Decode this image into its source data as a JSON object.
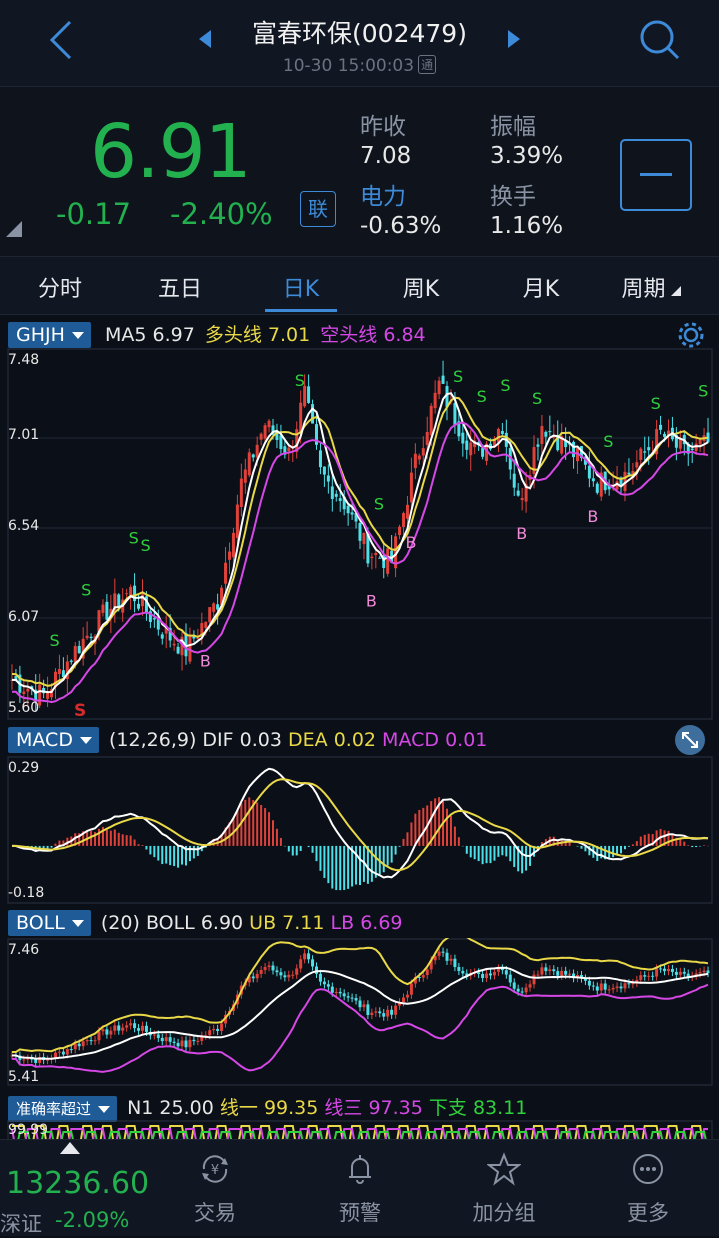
{
  "header": {
    "title": "富春环保(002479)",
    "datetime": "10-30 15:00:03",
    "tong": "通"
  },
  "quote": {
    "price": "6.91",
    "change": "-0.17",
    "change_pct": "-2.40%",
    "lian": "联",
    "prev_close_label": "昨收",
    "prev_close": "7.08",
    "amplitude_label": "振幅",
    "amplitude": "3.39%",
    "sector_label": "电力",
    "sector_change": "-0.63%",
    "turnover_label": "换手",
    "turnover": "1.16%"
  },
  "tabs": [
    "分时",
    "五日",
    "日K",
    "周K",
    "月K",
    "周期"
  ],
  "active_tab": "日K",
  "main_chart": {
    "selector": "GHJH",
    "ma5_label": "MA5",
    "ma5": "6.97",
    "long_label": "多头线",
    "long": "7.01",
    "short_label": "空头线",
    "short": "6.84",
    "y_labels": [
      "7.48",
      "7.01",
      "6.54",
      "6.07",
      "5.60"
    ]
  },
  "macd": {
    "selector": "MACD",
    "params": "(12,26,9)",
    "dif_label": "DIF",
    "dif": "0.03",
    "dea_label": "DEA",
    "dea": "0.02",
    "macd_label": "MACD",
    "macd": "0.01",
    "y_top": "0.29",
    "y_bottom": "-0.18"
  },
  "boll": {
    "selector": "BOLL",
    "params": "(20)",
    "boll_label": "BOLL",
    "boll": "6.90",
    "ub_label": "UB",
    "ub": "7.11",
    "lb_label": "LB",
    "lb": "6.69",
    "y_top": "7.46",
    "y_bottom": "5.41"
  },
  "accuracy": {
    "selector": "准确率超过",
    "n1_label": "N1",
    "n1": "25.00",
    "line1_label": "线一",
    "line1": "99.35",
    "line3_label": "线三",
    "line3": "97.35",
    "support_label": "下支",
    "support": "83.11",
    "y_top": "99.99"
  },
  "index": {
    "value": "13236.60",
    "name": "深证",
    "change_pct": "-2.09%"
  },
  "nav": [
    "交易",
    "预警",
    "加分组",
    "更多"
  ],
  "colors": {
    "up": "#e0423a",
    "down": "#4ee0e8",
    "green": "#23b04f",
    "accent": "#3d8bd8",
    "yellow": "#e9d847",
    "magenta": "#d548e6"
  }
}
